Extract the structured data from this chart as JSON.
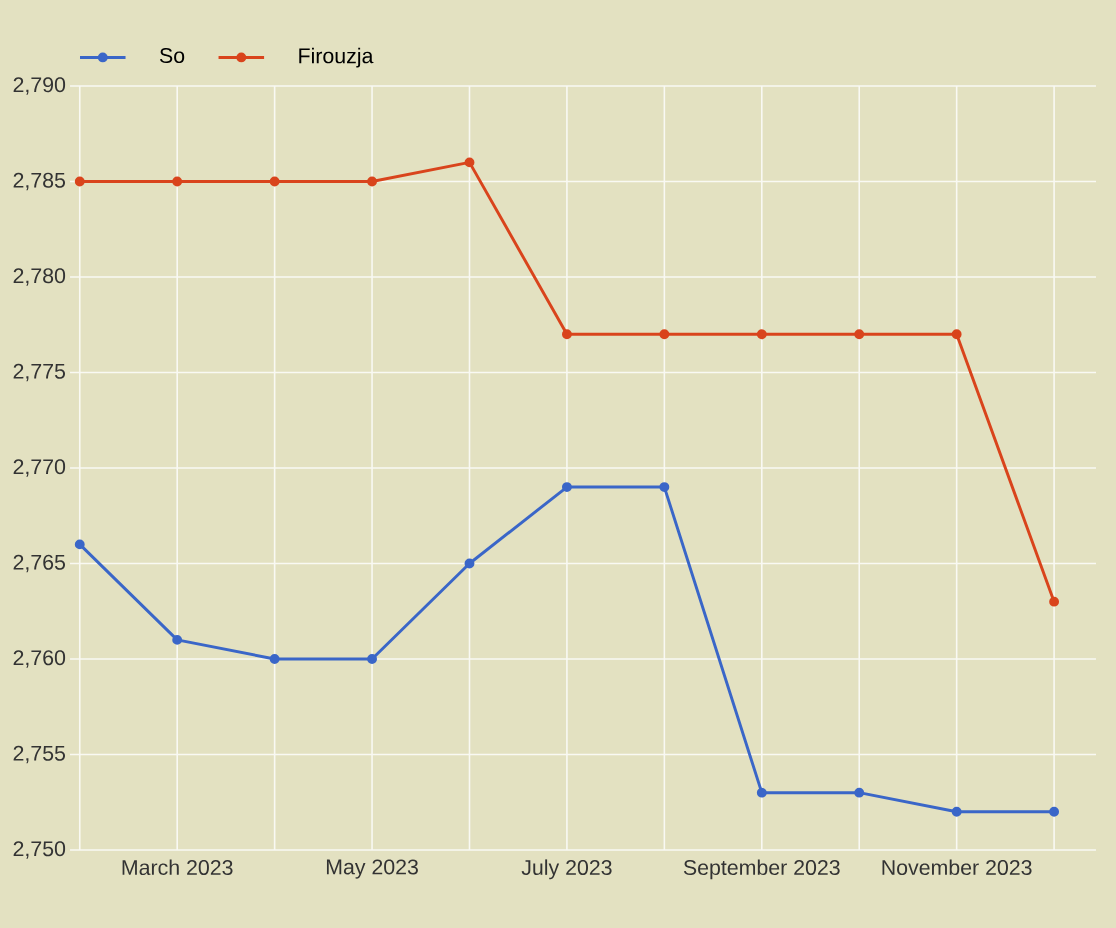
{
  "chart_data": {
    "type": "line",
    "categories": [
      null,
      "March 2023",
      null,
      "May 2023",
      null,
      "July 2023",
      null,
      "September 2023",
      null,
      "November 2023",
      null
    ],
    "series": [
      {
        "name": "So",
        "color": "#3a66c8",
        "values": [
          2766,
          2761,
          2760,
          2760,
          2765,
          2769,
          2769,
          2753,
          2753,
          2752,
          2752
        ]
      },
      {
        "name": "Firouzja",
        "color": "#d9441c",
        "values": [
          2785,
          2785,
          2785,
          2785,
          2786,
          2777,
          2777,
          2777,
          2777,
          2777,
          2763
        ]
      }
    ],
    "ylim": [
      2750,
      2790
    ],
    "yticks": [
      {
        "value": 2750,
        "label": "2,750"
      },
      {
        "value": 2755,
        "label": "2,755"
      },
      {
        "value": 2760,
        "label": "2,760"
      },
      {
        "value": 2765,
        "label": "2,765"
      },
      {
        "value": 2770,
        "label": "2,770"
      },
      {
        "value": 2775,
        "label": "2,775"
      },
      {
        "value": 2780,
        "label": "2,780"
      },
      {
        "value": 2785,
        "label": "2,785"
      },
      {
        "value": 2790,
        "label": "2,790"
      }
    ],
    "grid": true,
    "legend": "top left",
    "marker": "circle",
    "line_style": "solid"
  }
}
